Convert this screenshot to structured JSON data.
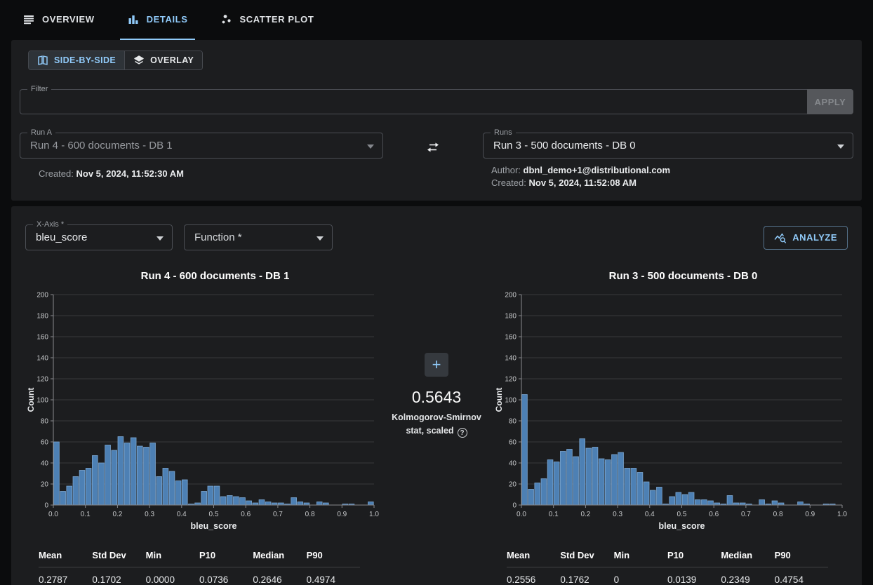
{
  "tabs": [
    {
      "label": "OVERVIEW"
    },
    {
      "label": "DETAILS"
    },
    {
      "label": "SCATTER PLOT"
    }
  ],
  "view_toggle": {
    "side_by_side": "SIDE-BY-SIDE",
    "overlay": "OVERLAY"
  },
  "filter": {
    "label": "Filter",
    "value": "",
    "apply_label": "APPLY"
  },
  "run_a": {
    "label": "Run A",
    "value": "Run 4 - 600 documents - DB 1",
    "created_label": "Created:",
    "created": "Nov 5, 2024, 11:52:30 AM"
  },
  "run_b": {
    "label": "Runs",
    "value": "Run 3 - 500 documents - DB 0",
    "author_label": "Author:",
    "author": "dbnl_demo+1@distributional.com",
    "created_label": "Created:",
    "created": "Nov 5, 2024, 11:52:08 AM"
  },
  "controls": {
    "x_axis_label": "X-Axis *",
    "x_axis_value": "bleu_score",
    "function_label": "Function *",
    "analyze_label": "ANALYZE"
  },
  "ks": {
    "plus_label": "+",
    "value": "0.5643",
    "caption_line1": "Kolmogorov-Smirnov",
    "caption_line2": "stat, scaled",
    "help_glyph": "?"
  },
  "chart_data": [
    {
      "type": "bar",
      "title": "Run 4 - 600 documents - DB 1",
      "xlabel": "bleu_score",
      "ylabel": "Count",
      "xlim": [
        0,
        1
      ],
      "ylim": [
        0,
        200
      ],
      "bin_start": 0,
      "bin_width": 0.02,
      "counts": [
        60,
        13,
        18,
        27,
        33,
        35,
        47,
        40,
        57,
        52,
        65,
        59,
        64,
        56,
        55,
        59,
        27,
        35,
        32,
        23,
        24,
        1,
        2,
        13,
        18,
        18,
        8,
        9,
        8,
        7,
        4,
        2,
        5,
        3,
        2,
        2,
        1,
        7,
        3,
        2,
        0,
        3,
        2,
        0,
        0,
        1,
        1,
        0,
        0,
        3
      ],
      "x_tick_labels": [
        "0.0",
        "0.1",
        "0.2",
        "0.3",
        "0.4",
        "0.5",
        "0.6",
        "0.7",
        "0.8",
        "0.9",
        "1.0"
      ],
      "y_ticks": [
        0,
        20,
        40,
        60,
        80,
        100,
        120,
        140,
        160,
        180,
        200
      ],
      "grid": true,
      "legend": "none"
    },
    {
      "type": "bar",
      "title": "Run 3 - 500 documents - DB 0",
      "xlabel": "bleu_score",
      "ylabel": "Count",
      "xlim": [
        0,
        1
      ],
      "ylim": [
        0,
        200
      ],
      "bin_start": 0,
      "bin_width": 0.02,
      "counts": [
        105,
        15,
        21,
        25,
        43,
        41,
        51,
        53,
        46,
        63,
        54,
        55,
        44,
        43,
        48,
        50,
        35,
        35,
        31,
        22,
        14,
        17,
        1,
        8,
        12,
        10,
        12,
        5,
        5,
        4,
        2,
        1,
        9,
        2,
        2,
        1,
        0,
        5,
        1,
        4,
        2,
        0,
        0,
        3,
        1,
        0,
        0,
        1,
        1,
        0
      ],
      "x_tick_labels": [
        "0.0",
        "0.1",
        "0.2",
        "0.3",
        "0.4",
        "0.5",
        "0.6",
        "0.7",
        "0.8",
        "0.9",
        "1.0"
      ],
      "y_ticks": [
        0,
        20,
        40,
        60,
        80,
        100,
        120,
        140,
        160,
        180,
        200
      ],
      "grid": true,
      "legend": "none"
    }
  ],
  "stats_tables": {
    "headers": [
      "Mean",
      "Std Dev",
      "Min",
      "P10",
      "Median",
      "P90"
    ],
    "left_values": [
      "0.2787",
      "0.1702",
      "0.0000",
      "0.0736",
      "0.2646",
      "0.4974"
    ],
    "right_values": [
      "0.2556",
      "0.1762",
      "0",
      "0.0139",
      "0.2349",
      "0.4754"
    ]
  },
  "colors": {
    "accent": "#90caf9",
    "bar_fill": "#4d80b4",
    "bar_stroke": "#7ca7d2",
    "grid_line": "#39393b",
    "axis_line": "#88898d",
    "tick_label": "#c7c9cb",
    "axis_title": "#e9ebed"
  }
}
